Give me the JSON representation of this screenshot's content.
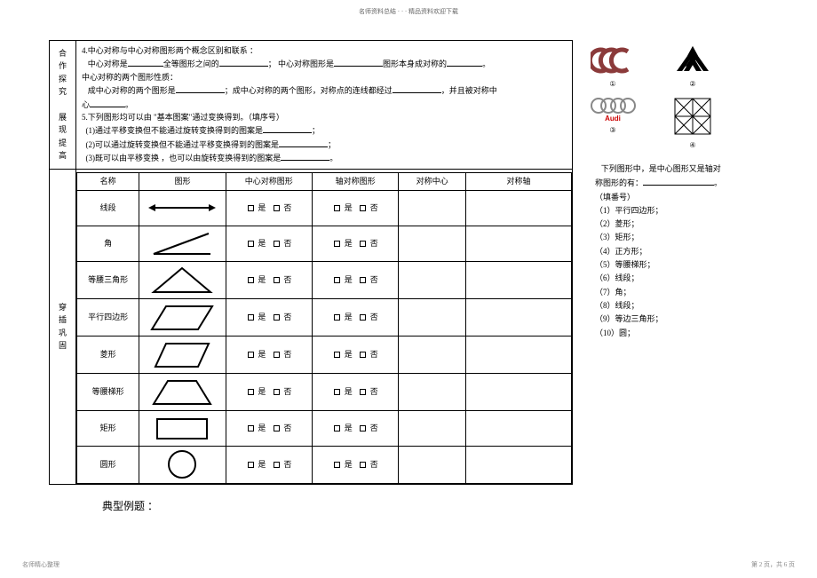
{
  "header": "名师资料总结 · · · 精品资料欢迎下载",
  "sections": {
    "coop": {
      "label": "合作\n探究",
      "line1_prefix": "4.中心对称与中心对称图形两个概念区别和联系",
      "line1_suffix": "：",
      "line2_a": "中心对称是",
      "line2_b": "全等图形之间的",
      "line2_c": "；   中心对称图形是",
      "line2_d": "图形本身成对称的",
      "line2_e": "。",
      "line3": "中心对称的两个图形性质：",
      "line4_a": "成中心对称的两个图形是",
      "line4_b": "；成中心对称的两个图形，对称点的连线都经过",
      "line4_c": "，并且被对称中",
      "line5": "心",
      "line5_b": "。"
    },
    "show": {
      "label": "展现\n提高",
      "line1": "5.下列图形均可以由 \"基本图案\"通过变换得到。（填序号）",
      "line2": "(1)通过平移变换但不能通过旋转变换得到的图案是",
      "line2_b": "；",
      "line3": "(2)可以通过旋转变换但不能通过平移变换得到的图案是",
      "line3_b": "；",
      "line4": "(3)既可以由平移变换   ，也可以由旋转变换得到的图案是",
      "line4_b": "。"
    },
    "practice": {
      "label": "穿插\n巩固"
    }
  },
  "table": {
    "headers": [
      "名称",
      "图形",
      "中心对称图形",
      "轴对称图形",
      "对称中心",
      "对称轴"
    ],
    "rows": [
      {
        "name": "线段",
        "h": 28
      },
      {
        "name": "角",
        "h": 38
      },
      {
        "name": "等腰三角形",
        "h": 42
      },
      {
        "name": "平行四边形",
        "h": 42
      },
      {
        "name": "菱形",
        "h": 42
      },
      {
        "name": "等腰梯形",
        "h": 42
      },
      {
        "name": "矩形",
        "h": 40
      },
      {
        "name": "圆形",
        "h": 42
      }
    ],
    "yes": "是",
    "no": "否"
  },
  "logos": {
    "captions": [
      "①",
      "②",
      "③",
      "④"
    ]
  },
  "right_text": {
    "intro_a": "下列图形中，是中心图形又是轴对",
    "intro_b": "称图形的有：",
    "intro_c": "。",
    "hint": "（填番号）",
    "items": [
      "（1）平行四边形；",
      "（2）菱形；",
      "（3）矩形；",
      "（4）正方形；",
      "（5）等腰梯形；",
      "（6）线段；",
      "（7）角；",
      "（8）线段；",
      "（9）等边三角形；",
      "（10）圆；"
    ]
  },
  "example_title": "典型例题  ：",
  "footer": {
    "left": "名师精心整理",
    "right": "第 2 页，共 6 页"
  }
}
